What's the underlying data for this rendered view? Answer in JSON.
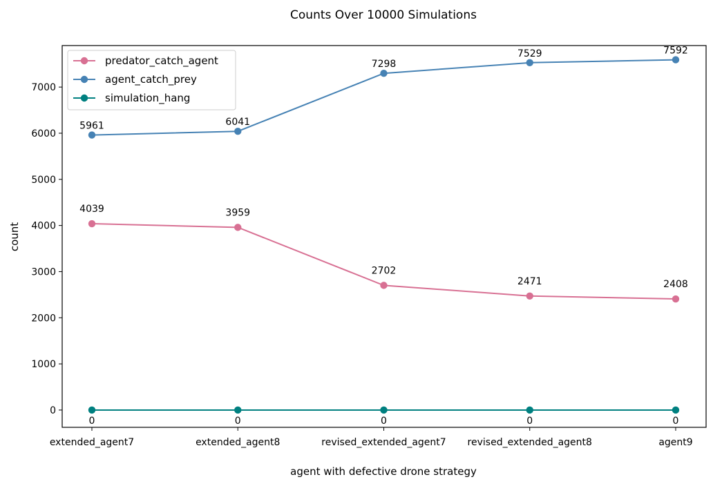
{
  "chart_data": {
    "type": "line",
    "title": "Counts Over 10000 Simulations",
    "xlabel": "agent with defective drone strategy",
    "ylabel": "count",
    "categories": [
      "extended_agent7",
      "extended_agent8",
      "revised_extended_agent7",
      "revised_extended_agent8",
      "agent9"
    ],
    "ylim": [
      -375,
      7900
    ],
    "yticks": [
      0,
      1000,
      2000,
      3000,
      4000,
      5000,
      6000,
      7000
    ],
    "grid": false,
    "legend_position": "top-left",
    "series": [
      {
        "name": "predator_catch_agent",
        "color": "#d87093",
        "values": [
          4039,
          3959,
          2702,
          2471,
          2408
        ]
      },
      {
        "name": "agent_catch_prey",
        "color": "#4682b4",
        "values": [
          5961,
          6041,
          7298,
          7529,
          7592
        ]
      },
      {
        "name": "simulation_hang",
        "color": "#008080",
        "values": [
          0,
          0,
          0,
          0,
          0
        ]
      }
    ]
  }
}
